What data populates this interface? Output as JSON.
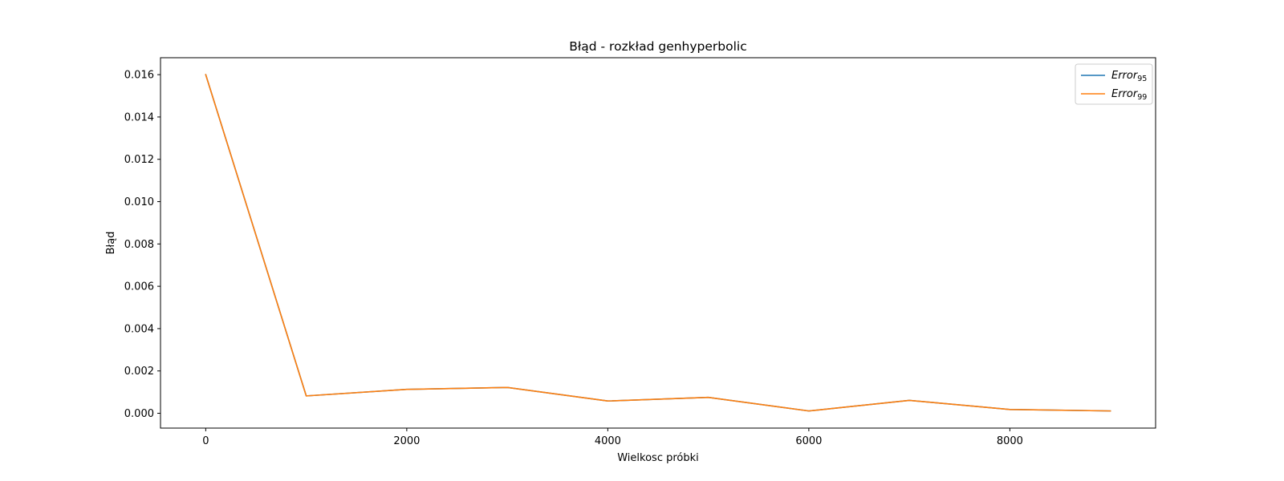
{
  "chart_data": {
    "type": "line",
    "title": "Błąd - rozkład genhyperbolic",
    "xlabel": "Wielkosc próbki",
    "ylabel": "Błąd",
    "xlim": [
      -450,
      9450
    ],
    "ylim": [
      -0.0007,
      0.0168
    ],
    "xticks": [
      0,
      2000,
      4000,
      6000,
      8000
    ],
    "xtick_labels": [
      "0",
      "2000",
      "4000",
      "6000",
      "8000"
    ],
    "yticks": [
      0.0,
      0.002,
      0.004,
      0.006,
      0.008,
      0.01,
      0.012,
      0.014,
      0.016
    ],
    "ytick_labels": [
      "0.000",
      "0.002",
      "0.004",
      "0.006",
      "0.008",
      "0.010",
      "0.012",
      "0.014",
      "0.016"
    ],
    "grid": false,
    "legend_position": "top-right",
    "x": [
      0,
      1000,
      2000,
      3000,
      4000,
      5000,
      6000,
      7000,
      8000,
      9000
    ],
    "series": [
      {
        "name": "Error95",
        "name_main": "Error",
        "name_sub": "95",
        "color": "#1f77b4",
        "values": [
          0.016,
          0.00082,
          0.00113,
          0.00122,
          0.00058,
          0.00075,
          0.00011,
          0.00061,
          0.00018,
          0.00011
        ]
      },
      {
        "name": "Error99",
        "name_main": "Error",
        "name_sub": "99",
        "color": "#ff7f0e",
        "values": [
          0.016,
          0.00082,
          0.00113,
          0.00122,
          0.00058,
          0.00075,
          0.00011,
          0.00061,
          0.00018,
          0.00011
        ]
      }
    ]
  }
}
